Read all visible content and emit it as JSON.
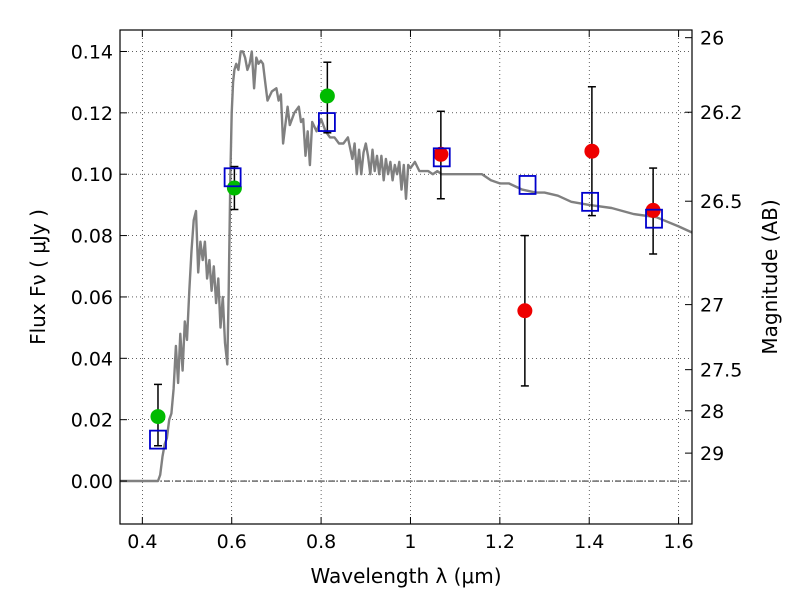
{
  "chart_data": {
    "type": "scatter",
    "xlabel": "Wavelength  λ (μm)",
    "ylabel": "Flux  Fν  ( μJy )",
    "y2label": "Magnitude (AB)",
    "xlim": [
      0.35,
      1.63
    ],
    "ylim": [
      -0.014,
      0.147
    ],
    "x_ticks": [
      0.4,
      0.6,
      0.8,
      1.0,
      1.2,
      1.4,
      1.6
    ],
    "x_tick_labels": [
      "0.4",
      "0.6",
      "0.8",
      "1",
      "1.2",
      "1.4",
      "1.6"
    ],
    "y_ticks": [
      0.0,
      0.02,
      0.04,
      0.06,
      0.08,
      0.1,
      0.12,
      0.14
    ],
    "y_tick_labels": [
      "0.00",
      "0.02",
      "0.04",
      "0.06",
      "0.08",
      "0.10",
      "0.12",
      "0.14"
    ],
    "y2_ticks": [
      {
        "label": "26",
        "flux": 0.1445
      },
      {
        "label": "26.2",
        "flux": 0.1202
      },
      {
        "label": "26.5",
        "flux": 0.0912
      },
      {
        "label": "27",
        "flux": 0.0575
      },
      {
        "label": "27.5",
        "flux": 0.0363
      },
      {
        "label": "28",
        "flux": 0.0229
      },
      {
        "label": "29",
        "flux": 0.0091
      }
    ],
    "grid": true,
    "zero_line": true,
    "colors": {
      "green": "#00bb00",
      "red": "#ee0000",
      "square": "#0000cc",
      "sed": "#808080",
      "errorbar": "#000000"
    },
    "sed_curve": {
      "name": "",
      "x": [
        0.35,
        0.42,
        0.435,
        0.44,
        0.445,
        0.45,
        0.455,
        0.46,
        0.465,
        0.47,
        0.475,
        0.48,
        0.485,
        0.49,
        0.495,
        0.5,
        0.505,
        0.51,
        0.515,
        0.52,
        0.525,
        0.53,
        0.535,
        0.54,
        0.545,
        0.55,
        0.555,
        0.56,
        0.565,
        0.57,
        0.575,
        0.58,
        0.585,
        0.59,
        0.593,
        0.597,
        0.6,
        0.603,
        0.606,
        0.61,
        0.615,
        0.62,
        0.625,
        0.63,
        0.635,
        0.64,
        0.645,
        0.65,
        0.655,
        0.66,
        0.665,
        0.67,
        0.675,
        0.68,
        0.69,
        0.7,
        0.705,
        0.71,
        0.715,
        0.72,
        0.725,
        0.73,
        0.74,
        0.75,
        0.755,
        0.76,
        0.765,
        0.77,
        0.775,
        0.78,
        0.79,
        0.8,
        0.81,
        0.82,
        0.83,
        0.84,
        0.85,
        0.86,
        0.87,
        0.875,
        0.88,
        0.885,
        0.89,
        0.895,
        0.9,
        0.905,
        0.91,
        0.915,
        0.92,
        0.925,
        0.93,
        0.935,
        0.94,
        0.945,
        0.95,
        0.955,
        0.96,
        0.965,
        0.97,
        0.975,
        0.98,
        0.985,
        0.99,
        0.995,
        1.0,
        1.01,
        1.02,
        1.03,
        1.04,
        1.05,
        1.06,
        1.07,
        1.08,
        1.1,
        1.12,
        1.14,
        1.16,
        1.18,
        1.2,
        1.22,
        1.25,
        1.28,
        1.3,
        1.33,
        1.36,
        1.4,
        1.45,
        1.5,
        1.55,
        1.6,
        1.63
      ],
      "y": [
        0.0,
        0.0,
        0.0,
        0.002,
        0.008,
        0.012,
        0.014,
        0.02,
        0.022,
        0.03,
        0.044,
        0.032,
        0.048,
        0.036,
        0.052,
        0.046,
        0.062,
        0.075,
        0.085,
        0.088,
        0.068,
        0.078,
        0.072,
        0.078,
        0.066,
        0.072,
        0.062,
        0.07,
        0.058,
        0.066,
        0.05,
        0.06,
        0.045,
        0.038,
        0.06,
        0.1,
        0.12,
        0.13,
        0.134,
        0.136,
        0.134,
        0.14,
        0.14,
        0.138,
        0.134,
        0.136,
        0.14,
        0.128,
        0.138,
        0.136,
        0.137,
        0.136,
        0.13,
        0.124,
        0.127,
        0.128,
        0.124,
        0.126,
        0.11,
        0.116,
        0.122,
        0.116,
        0.12,
        0.122,
        0.117,
        0.118,
        0.106,
        0.114,
        0.103,
        0.117,
        0.114,
        0.118,
        0.114,
        0.112,
        0.112,
        0.11,
        0.11,
        0.112,
        0.105,
        0.11,
        0.1,
        0.108,
        0.1,
        0.107,
        0.11,
        0.106,
        0.1,
        0.108,
        0.101,
        0.106,
        0.1,
        0.106,
        0.098,
        0.105,
        0.1,
        0.104,
        0.098,
        0.103,
        0.1,
        0.104,
        0.095,
        0.103,
        0.092,
        0.103,
        0.102,
        0.104,
        0.101,
        0.101,
        0.101,
        0.1,
        0.101,
        0.1,
        0.1,
        0.1,
        0.1,
        0.1,
        0.1,
        0.098,
        0.097,
        0.097,
        0.095,
        0.094,
        0.094,
        0.093,
        0.091,
        0.09,
        0.089,
        0.087,
        0.086,
        0.083,
        0.081
      ]
    },
    "series": [
      {
        "marker": "circle",
        "color": "green",
        "points": [
          {
            "x": 0.435,
            "y": 0.021,
            "err_lo": 0.0115,
            "err_hi": 0.0315
          },
          {
            "x": 0.606,
            "y": 0.0955,
            "err_lo": 0.0885,
            "err_hi": 0.1025
          },
          {
            "x": 0.814,
            "y": 0.1255,
            "err_lo": 0.1135,
            "err_hi": 0.1365
          }
        ]
      },
      {
        "marker": "circle",
        "color": "red",
        "points": [
          {
            "x": 1.068,
            "y": 0.1065,
            "err_lo": 0.092,
            "err_hi": 0.1205
          },
          {
            "x": 1.256,
            "y": 0.0555,
            "err_lo": 0.031,
            "err_hi": 0.08
          },
          {
            "x": 1.406,
            "y": 0.1075,
            "err_lo": 0.0865,
            "err_hi": 0.1285
          },
          {
            "x": 1.543,
            "y": 0.0882,
            "err_lo": 0.074,
            "err_hi": 0.102
          }
        ]
      },
      {
        "marker": "open-square",
        "color": "square",
        "points": [
          {
            "x": 0.435,
            "y": 0.0135
          },
          {
            "x": 0.602,
            "y": 0.099
          },
          {
            "x": 0.813,
            "y": 0.117
          },
          {
            "x": 1.07,
            "y": 0.1055
          },
          {
            "x": 1.262,
            "y": 0.0965
          },
          {
            "x": 1.402,
            "y": 0.091
          },
          {
            "x": 1.545,
            "y": 0.0855
          }
        ]
      }
    ]
  }
}
